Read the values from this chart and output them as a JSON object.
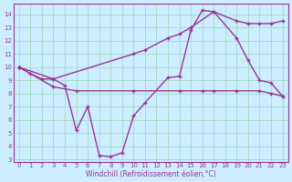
{
  "xlabel": "Windchill (Refroidissement éolien,°C)",
  "bg_color": "#cceeff",
  "grid_color": "#aaddcc",
  "line_color": "#993399",
  "xlim": [
    -0.5,
    23.5
  ],
  "ylim": [
    2.8,
    14.8
  ],
  "yticks": [
    3,
    4,
    5,
    6,
    7,
    8,
    9,
    10,
    11,
    12,
    13,
    14
  ],
  "xticks": [
    0,
    1,
    2,
    3,
    4,
    5,
    6,
    7,
    8,
    9,
    10,
    11,
    12,
    13,
    14,
    15,
    16,
    17,
    18,
    19,
    20,
    21,
    22,
    23
  ],
  "line1_x": [
    0,
    1,
    2,
    3,
    4,
    5,
    6,
    7,
    8,
    9,
    10,
    11,
    13,
    14,
    15,
    16,
    17,
    19,
    20,
    21,
    22,
    23
  ],
  "line1_y": [
    10.0,
    9.5,
    9.1,
    9.1,
    8.6,
    5.2,
    7.0,
    3.3,
    3.2,
    3.5,
    6.3,
    7.3,
    9.2,
    9.3,
    12.8,
    14.3,
    14.2,
    12.2,
    10.5,
    9.0,
    8.8,
    7.8
  ],
  "line2_x": [
    0,
    3,
    10,
    11,
    13,
    14,
    15,
    17,
    19,
    20,
    21,
    22,
    23
  ],
  "line2_y": [
    10.0,
    9.1,
    11.0,
    11.3,
    12.2,
    12.5,
    13.0,
    14.2,
    13.5,
    13.3,
    13.3,
    13.3,
    13.5
  ],
  "line3_x": [
    0,
    3,
    5,
    10,
    14,
    16,
    17,
    19,
    21,
    22,
    23
  ],
  "line3_y": [
    10.0,
    8.5,
    8.2,
    8.2,
    8.2,
    8.2,
    8.2,
    8.2,
    8.2,
    8.0,
    7.8
  ]
}
